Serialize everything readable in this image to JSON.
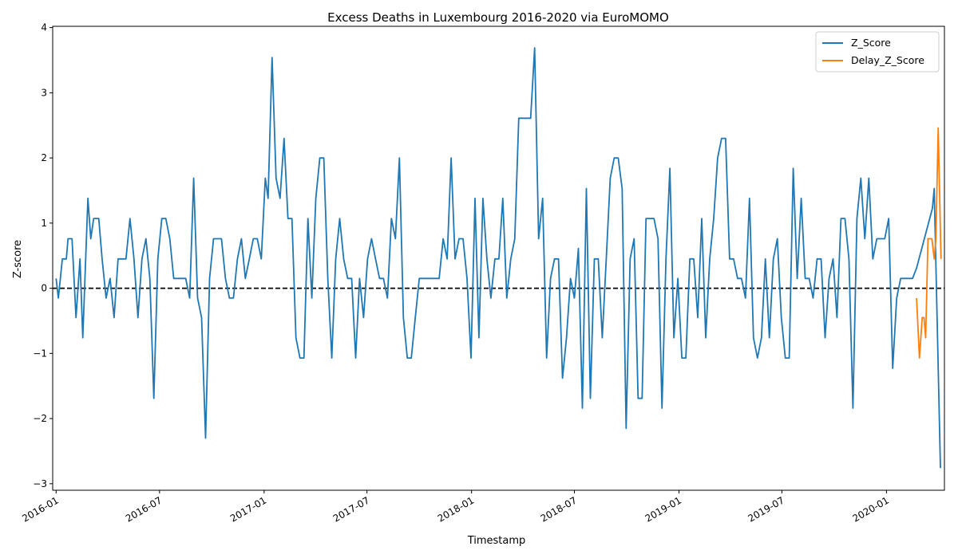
{
  "chart_data": {
    "type": "line",
    "title": "Excess Deaths in Luxembourg 2016-2020 via EuroMOMO",
    "xlabel": "Timestamp",
    "ylabel": "Z-score",
    "xlim": [
      "2015-12-26",
      "2020-04-12"
    ],
    "ylim": [
      -3.1,
      4.02
    ],
    "yticks": [
      -3,
      -2,
      -1,
      0,
      1,
      2,
      3,
      4
    ],
    "xticks": [
      "2016-01",
      "2016-07",
      "2017-01",
      "2017-07",
      "2018-01",
      "2018-07",
      "2019-01",
      "2019-07",
      "2020-01"
    ],
    "grid": false,
    "legend_position": "top-right",
    "reference_line": {
      "y": 0,
      "style": "dashed",
      "color": "#000000"
    },
    "series": [
      {
        "name": "Z_Score",
        "color": "#1f77b4",
        "points": [
          [
            "2016-01-01",
            0.15
          ],
          [
            "2016-01-05",
            -0.15
          ],
          [
            "2016-01-12",
            0.45
          ],
          [
            "2016-01-19",
            0.45
          ],
          [
            "2016-01-22",
            0.76
          ],
          [
            "2016-01-29",
            0.76
          ],
          [
            "2016-02-05",
            -0.45
          ],
          [
            "2016-02-12",
            0.45
          ],
          [
            "2016-02-17",
            -0.76
          ],
          [
            "2016-02-26",
            1.38
          ],
          [
            "2016-03-02",
            0.76
          ],
          [
            "2016-03-07",
            1.07
          ],
          [
            "2016-03-16",
            1.07
          ],
          [
            "2016-03-22",
            0.45
          ],
          [
            "2016-03-29",
            -0.15
          ],
          [
            "2016-04-05",
            0.15
          ],
          [
            "2016-04-12",
            -0.45
          ],
          [
            "2016-04-19",
            0.45
          ],
          [
            "2016-04-26",
            0.45
          ],
          [
            "2016-05-03",
            0.45
          ],
          [
            "2016-05-10",
            1.07
          ],
          [
            "2016-05-17",
            0.45
          ],
          [
            "2016-05-24",
            -0.45
          ],
          [
            "2016-05-31",
            0.45
          ],
          [
            "2016-06-07",
            0.76
          ],
          [
            "2016-06-14",
            0.15
          ],
          [
            "2016-06-21",
            -1.69
          ],
          [
            "2016-06-28",
            0.45
          ],
          [
            "2016-07-05",
            1.07
          ],
          [
            "2016-07-12",
            1.07
          ],
          [
            "2016-07-19",
            0.76
          ],
          [
            "2016-07-26",
            0.15
          ],
          [
            "2016-08-02",
            0.15
          ],
          [
            "2016-08-09",
            0.15
          ],
          [
            "2016-08-16",
            0.15
          ],
          [
            "2016-08-23",
            -0.15
          ],
          [
            "2016-08-30",
            1.69
          ],
          [
            "2016-09-06",
            -0.15
          ],
          [
            "2016-09-13",
            -0.45
          ],
          [
            "2016-09-20",
            -2.3
          ],
          [
            "2016-09-27",
            0.15
          ],
          [
            "2016-10-04",
            0.76
          ],
          [
            "2016-10-11",
            0.76
          ],
          [
            "2016-10-18",
            0.76
          ],
          [
            "2016-10-25",
            0.15
          ],
          [
            "2016-11-01",
            -0.15
          ],
          [
            "2016-11-08",
            -0.15
          ],
          [
            "2016-11-15",
            0.45
          ],
          [
            "2016-11-22",
            0.76
          ],
          [
            "2016-11-29",
            0.15
          ],
          [
            "2016-12-06",
            0.45
          ],
          [
            "2016-12-13",
            0.76
          ],
          [
            "2016-12-20",
            0.76
          ],
          [
            "2016-12-27",
            0.45
          ],
          [
            "2017-01-03",
            1.69
          ],
          [
            "2017-01-08",
            1.38
          ],
          [
            "2017-01-15",
            3.54
          ],
          [
            "2017-01-22",
            1.69
          ],
          [
            "2017-01-29",
            1.38
          ],
          [
            "2017-02-05",
            2.3
          ],
          [
            "2017-02-12",
            1.07
          ],
          [
            "2017-02-19",
            1.07
          ],
          [
            "2017-02-26",
            -0.76
          ],
          [
            "2017-03-05",
            -1.07
          ],
          [
            "2017-03-12",
            -1.07
          ],
          [
            "2017-03-19",
            1.07
          ],
          [
            "2017-03-26",
            -0.15
          ],
          [
            "2017-04-02",
            1.38
          ],
          [
            "2017-04-09",
            2.0
          ],
          [
            "2017-04-16",
            2.0
          ],
          [
            "2017-04-23",
            0.15
          ],
          [
            "2017-04-30",
            -1.07
          ],
          [
            "2017-05-07",
            0.45
          ],
          [
            "2017-05-14",
            1.07
          ],
          [
            "2017-05-21",
            0.45
          ],
          [
            "2017-05-28",
            0.15
          ],
          [
            "2017-06-04",
            0.15
          ],
          [
            "2017-06-11",
            -1.07
          ],
          [
            "2017-06-18",
            0.15
          ],
          [
            "2017-06-25",
            -0.45
          ],
          [
            "2017-07-02",
            0.45
          ],
          [
            "2017-07-09",
            0.76
          ],
          [
            "2017-07-16",
            0.45
          ],
          [
            "2017-07-23",
            0.15
          ],
          [
            "2017-07-30",
            0.15
          ],
          [
            "2017-08-06",
            -0.15
          ],
          [
            "2017-08-13",
            1.07
          ],
          [
            "2017-08-20",
            0.76
          ],
          [
            "2017-08-27",
            2.0
          ],
          [
            "2017-09-03",
            -0.45
          ],
          [
            "2017-09-10",
            -1.07
          ],
          [
            "2017-09-17",
            -1.07
          ],
          [
            "2017-09-24",
            -0.45
          ],
          [
            "2017-10-01",
            0.15
          ],
          [
            "2017-10-08",
            0.15
          ],
          [
            "2017-10-15",
            0.15
          ],
          [
            "2017-10-22",
            0.15
          ],
          [
            "2017-10-29",
            0.15
          ],
          [
            "2017-11-05",
            0.15
          ],
          [
            "2017-11-12",
            0.76
          ],
          [
            "2017-11-19",
            0.45
          ],
          [
            "2017-11-26",
            2.0
          ],
          [
            "2017-12-03",
            0.45
          ],
          [
            "2017-12-10",
            0.76
          ],
          [
            "2017-12-17",
            0.76
          ],
          [
            "2017-12-24",
            0.15
          ],
          [
            "2017-12-31",
            -1.07
          ],
          [
            "2018-01-07",
            1.38
          ],
          [
            "2018-01-14",
            -0.76
          ],
          [
            "2018-01-21",
            1.38
          ],
          [
            "2018-01-28",
            0.45
          ],
          [
            "2018-02-04",
            -0.15
          ],
          [
            "2018-02-11",
            0.45
          ],
          [
            "2018-02-18",
            0.45
          ],
          [
            "2018-02-25",
            1.38
          ],
          [
            "2018-03-04",
            -0.15
          ],
          [
            "2018-03-11",
            0.45
          ],
          [
            "2018-03-18",
            0.76
          ],
          [
            "2018-03-25",
            2.61
          ],
          [
            "2018-04-01",
            2.61
          ],
          [
            "2018-04-08",
            2.61
          ],
          [
            "2018-04-15",
            2.61
          ],
          [
            "2018-04-22",
            3.69
          ],
          [
            "2018-04-29",
            0.76
          ],
          [
            "2018-05-06",
            1.38
          ],
          [
            "2018-05-13",
            -1.07
          ],
          [
            "2018-05-20",
            0.15
          ],
          [
            "2018-05-27",
            0.45
          ],
          [
            "2018-06-03",
            0.45
          ],
          [
            "2018-06-10",
            -1.38
          ],
          [
            "2018-06-17",
            -0.76
          ],
          [
            "2018-06-24",
            0.15
          ],
          [
            "2018-07-01",
            -0.15
          ],
          [
            "2018-07-08",
            0.61
          ],
          [
            "2018-07-15",
            -1.84
          ],
          [
            "2018-07-22",
            1.53
          ],
          [
            "2018-07-29",
            -1.69
          ],
          [
            "2018-08-05",
            0.45
          ],
          [
            "2018-08-12",
            0.45
          ],
          [
            "2018-08-19",
            -0.76
          ],
          [
            "2018-08-26",
            0.45
          ],
          [
            "2018-09-02",
            1.69
          ],
          [
            "2018-09-09",
            2.0
          ],
          [
            "2018-09-16",
            2.0
          ],
          [
            "2018-09-23",
            1.53
          ],
          [
            "2018-09-30",
            -2.15
          ],
          [
            "2018-10-07",
            0.45
          ],
          [
            "2018-10-14",
            0.76
          ],
          [
            "2018-10-21",
            -1.69
          ],
          [
            "2018-10-28",
            -1.69
          ],
          [
            "2018-11-04",
            1.07
          ],
          [
            "2018-11-11",
            1.07
          ],
          [
            "2018-11-18",
            1.07
          ],
          [
            "2018-11-25",
            0.76
          ],
          [
            "2018-12-02",
            -1.84
          ],
          [
            "2018-12-09",
            0.45
          ],
          [
            "2018-12-16",
            1.84
          ],
          [
            "2018-12-23",
            -0.76
          ],
          [
            "2018-12-30",
            0.15
          ],
          [
            "2019-01-06",
            -1.07
          ],
          [
            "2019-01-13",
            -1.07
          ],
          [
            "2019-01-20",
            0.45
          ],
          [
            "2019-01-27",
            0.45
          ],
          [
            "2019-02-03",
            -0.45
          ],
          [
            "2019-02-10",
            1.07
          ],
          [
            "2019-02-17",
            -0.76
          ],
          [
            "2019-02-24",
            0.45
          ],
          [
            "2019-03-03",
            1.07
          ],
          [
            "2019-03-10",
            2.0
          ],
          [
            "2019-03-17",
            2.3
          ],
          [
            "2019-03-24",
            2.3
          ],
          [
            "2019-03-31",
            0.45
          ],
          [
            "2019-04-07",
            0.45
          ],
          [
            "2019-04-14",
            0.15
          ],
          [
            "2019-04-21",
            0.15
          ],
          [
            "2019-04-28",
            -0.15
          ],
          [
            "2019-05-05",
            1.38
          ],
          [
            "2019-05-12",
            -0.76
          ],
          [
            "2019-05-19",
            -1.07
          ],
          [
            "2019-05-26",
            -0.76
          ],
          [
            "2019-06-02",
            0.45
          ],
          [
            "2019-06-09",
            -0.76
          ],
          [
            "2019-06-16",
            0.45
          ],
          [
            "2019-06-23",
            0.76
          ],
          [
            "2019-06-30",
            -0.45
          ],
          [
            "2019-07-07",
            -1.07
          ],
          [
            "2019-07-14",
            -1.07
          ],
          [
            "2019-07-21",
            1.84
          ],
          [
            "2019-07-28",
            0.15
          ],
          [
            "2019-08-04",
            1.38
          ],
          [
            "2019-08-11",
            0.15
          ],
          [
            "2019-08-18",
            0.15
          ],
          [
            "2019-08-25",
            -0.15
          ],
          [
            "2019-09-01",
            0.45
          ],
          [
            "2019-09-08",
            0.45
          ],
          [
            "2019-09-15",
            -0.76
          ],
          [
            "2019-09-22",
            0.15
          ],
          [
            "2019-09-29",
            0.45
          ],
          [
            "2019-10-06",
            -0.45
          ],
          [
            "2019-10-13",
            1.07
          ],
          [
            "2019-10-20",
            1.07
          ],
          [
            "2019-10-27",
            0.45
          ],
          [
            "2019-11-03",
            -1.84
          ],
          [
            "2019-11-10",
            1.07
          ],
          [
            "2019-11-17",
            1.69
          ],
          [
            "2019-11-24",
            0.76
          ],
          [
            "2019-12-01",
            1.69
          ],
          [
            "2019-12-08",
            0.45
          ],
          [
            "2019-12-15",
            0.76
          ],
          [
            "2019-12-22",
            0.76
          ],
          [
            "2019-12-29",
            0.76
          ],
          [
            "2020-01-05",
            1.07
          ],
          [
            "2020-01-12",
            -1.23
          ],
          [
            "2020-01-19",
            -0.15
          ],
          [
            "2020-01-26",
            0.15
          ],
          [
            "2020-02-02",
            0.15
          ],
          [
            "2020-02-09",
            0.15
          ],
          [
            "2020-02-16",
            0.15
          ],
          [
            "2020-02-23",
            0.31
          ],
          [
            "2020-03-22",
            1.23
          ],
          [
            "2020-03-25",
            1.53
          ],
          [
            "2020-04-05",
            -2.76
          ]
        ]
      },
      {
        "name": "Delay_Z_Score",
        "color": "#ff7f0e",
        "points": [
          [
            "2020-02-23",
            -0.15
          ],
          [
            "2020-02-28",
            -1.07
          ],
          [
            "2020-03-04",
            -0.45
          ],
          [
            "2020-03-07",
            -0.45
          ],
          [
            "2020-03-10",
            -0.76
          ],
          [
            "2020-03-14",
            0.76
          ],
          [
            "2020-03-21",
            0.76
          ],
          [
            "2020-03-25",
            0.45
          ],
          [
            "2020-03-28",
            0.76
          ],
          [
            "2020-04-01",
            2.46
          ],
          [
            "2020-04-06",
            0.45
          ]
        ]
      }
    ]
  }
}
